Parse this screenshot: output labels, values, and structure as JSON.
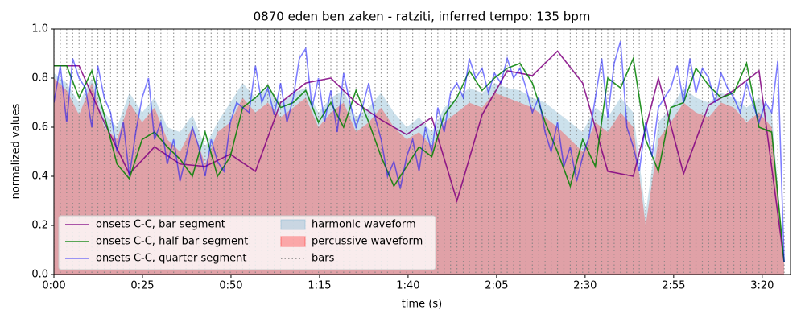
{
  "chart_data": {
    "type": "line",
    "title": "0870 eden ben zaken - ratziti, inferred tempo: 135 bpm",
    "x_label": "time (s)",
    "y_label": "normalized values",
    "xlim": [
      0,
      208
    ],
    "ylim": [
      0,
      1
    ],
    "xticks": [
      {
        "value": 0,
        "label": "0:00"
      },
      {
        "value": 25,
        "label": "0:25"
      },
      {
        "value": 50,
        "label": "0:50"
      },
      {
        "value": 75,
        "label": "1:15"
      },
      {
        "value": 100,
        "label": "1:40"
      },
      {
        "value": 125,
        "label": "2:05"
      },
      {
        "value": 150,
        "label": "2:30"
      },
      {
        "value": 175,
        "label": "2:55"
      },
      {
        "value": 200,
        "label": "3:20"
      }
    ],
    "yticks": [
      {
        "value": 0,
        "label": "0.0"
      },
      {
        "value": 0.2,
        "label": "0.2"
      },
      {
        "value": 0.4,
        "label": "0.4"
      },
      {
        "value": 0.6,
        "label": "0.6"
      },
      {
        "value": 0.8,
        "label": "0.8"
      },
      {
        "value": 1,
        "label": "1.0"
      }
    ],
    "legend": "lower left",
    "x": [
      0,
      3.6,
      7.1,
      10.7,
      14.2,
      17.8,
      21.3,
      24.9,
      28.4,
      32.0,
      35.6,
      39.1,
      42.7,
      46.2,
      49.8,
      53.3,
      56.9,
      60.4,
      64.0,
      67.6,
      71.1,
      74.7,
      78.2,
      81.8,
      85.3,
      88.9,
      92.4,
      96.0,
      99.6,
      103.1,
      106.7,
      110.2,
      113.8,
      117.3,
      120.9,
      124.4,
      128.0,
      131.6,
      135.1,
      138.7,
      142.2,
      145.8,
      149.3,
      152.9,
      156.4,
      160.0,
      163.6,
      167.1,
      170.7,
      174.2,
      177.8,
      181.3,
      184.9,
      188.4,
      192.0,
      195.6,
      199.1,
      202.7,
      206.2
    ],
    "series": [
      {
        "name": "onsets C-C, bar segment",
        "color": "#800080",
        "kind": "line",
        "opacity": 0.85,
        "x": [
          0,
          7.1,
          14.2,
          21.3,
          28.4,
          35.6,
          42.7,
          49.8,
          56.9,
          64.0,
          71.1,
          78.2,
          85.3,
          92.4,
          99.6,
          106.7,
          113.8,
          120.9,
          128.0,
          135.1,
          142.2,
          149.3,
          156.4,
          163.6,
          170.7,
          177.8,
          184.9,
          192.0,
          199.1,
          206.2
        ],
        "values": [
          0.85,
          0.85,
          0.62,
          0.41,
          0.52,
          0.45,
          0.44,
          0.49,
          0.42,
          0.7,
          0.78,
          0.8,
          0.7,
          0.63,
          0.57,
          0.64,
          0.3,
          0.65,
          0.83,
          0.81,
          0.91,
          0.78,
          0.42,
          0.4,
          0.8,
          0.41,
          0.69,
          0.75,
          0.83,
          0.05
        ]
      },
      {
        "name": "onsets C-C, half bar segment",
        "color": "#008000",
        "kind": "line",
        "opacity": 0.85,
        "values": [
          0.85,
          0.85,
          0.72,
          0.83,
          0.65,
          0.45,
          0.39,
          0.55,
          0.58,
          0.52,
          0.47,
          0.4,
          0.58,
          0.4,
          0.48,
          0.68,
          0.72,
          0.77,
          0.68,
          0.7,
          0.75,
          0.62,
          0.7,
          0.6,
          0.75,
          0.62,
          0.48,
          0.36,
          0.44,
          0.52,
          0.48,
          0.65,
          0.72,
          0.83,
          0.75,
          0.8,
          0.84,
          0.86,
          0.78,
          0.62,
          0.5,
          0.36,
          0.55,
          0.44,
          0.8,
          0.76,
          0.88,
          0.55,
          0.42,
          0.68,
          0.7,
          0.84,
          0.77,
          0.72,
          0.74,
          0.86,
          0.6,
          0.58,
          0.05
        ]
      },
      {
        "name": "onsets C-C, quarter segment",
        "color": "#0000ff",
        "kind": "line",
        "opacity": 0.5,
        "x": [
          0.0,
          1.8,
          3.6,
          5.3,
          7.1,
          8.9,
          10.7,
          12.4,
          14.2,
          16.0,
          17.8,
          19.6,
          21.3,
          23.1,
          24.9,
          26.7,
          28.4,
          30.2,
          32.0,
          33.8,
          35.6,
          37.3,
          39.1,
          40.9,
          42.7,
          44.4,
          46.2,
          48.0,
          49.8,
          51.6,
          53.3,
          55.1,
          56.9,
          58.7,
          60.4,
          62.2,
          64.0,
          65.8,
          67.6,
          69.3,
          71.1,
          72.9,
          74.7,
          76.4,
          78.2,
          80.0,
          81.8,
          83.6,
          85.3,
          87.1,
          88.9,
          90.7,
          92.4,
          94.2,
          96.0,
          97.8,
          99.6,
          101.3,
          103.1,
          104.9,
          106.7,
          108.4,
          110.2,
          112.0,
          113.8,
          115.6,
          117.3,
          119.1,
          120.9,
          122.7,
          124.4,
          126.2,
          128.0,
          129.8,
          131.6,
          133.3,
          135.1,
          136.9,
          138.7,
          140.4,
          142.2,
          144.0,
          145.8,
          147.6,
          149.3,
          151.1,
          152.9,
          154.7,
          156.4,
          158.2,
          160.0,
          161.8,
          163.6,
          165.3,
          167.1,
          168.9,
          170.7,
          172.4,
          174.2,
          176.0,
          177.8,
          179.6,
          181.3,
          183.1,
          184.9,
          186.7,
          188.4,
          190.2,
          192.0,
          193.8,
          195.6,
          197.3,
          199.1,
          200.9,
          202.7,
          204.4,
          206.2
        ],
        "values": [
          0.7,
          0.85,
          0.62,
          0.88,
          0.8,
          0.76,
          0.6,
          0.85,
          0.72,
          0.66,
          0.5,
          0.62,
          0.4,
          0.58,
          0.72,
          0.8,
          0.55,
          0.62,
          0.45,
          0.55,
          0.38,
          0.48,
          0.6,
          0.52,
          0.4,
          0.55,
          0.46,
          0.42,
          0.62,
          0.7,
          0.68,
          0.66,
          0.85,
          0.7,
          0.76,
          0.65,
          0.78,
          0.62,
          0.72,
          0.88,
          0.92,
          0.68,
          0.8,
          0.62,
          0.75,
          0.58,
          0.82,
          0.7,
          0.6,
          0.68,
          0.78,
          0.64,
          0.55,
          0.4,
          0.46,
          0.35,
          0.48,
          0.55,
          0.42,
          0.6,
          0.5,
          0.68,
          0.58,
          0.74,
          0.78,
          0.72,
          0.88,
          0.8,
          0.84,
          0.74,
          0.82,
          0.78,
          0.88,
          0.8,
          0.84,
          0.76,
          0.66,
          0.72,
          0.58,
          0.5,
          0.62,
          0.44,
          0.52,
          0.38,
          0.48,
          0.56,
          0.72,
          0.88,
          0.64,
          0.86,
          0.95,
          0.6,
          0.52,
          0.42,
          0.62,
          0.48,
          0.68,
          0.72,
          0.76,
          0.85,
          0.7,
          0.88,
          0.74,
          0.84,
          0.8,
          0.7,
          0.82,
          0.76,
          0.72,
          0.66,
          0.78,
          0.7,
          0.62,
          0.7,
          0.66,
          0.87,
          0.05
        ]
      },
      {
        "name": "harmonic waveform",
        "color": "#8fbcd4",
        "kind": "area",
        "opacity": 0.45,
        "values": [
          0.82,
          0.78,
          0.7,
          0.8,
          0.66,
          0.6,
          0.74,
          0.66,
          0.72,
          0.6,
          0.58,
          0.65,
          0.52,
          0.62,
          0.7,
          0.78,
          0.72,
          0.76,
          0.7,
          0.74,
          0.76,
          0.66,
          0.72,
          0.75,
          0.64,
          0.68,
          0.74,
          0.66,
          0.6,
          0.64,
          0.58,
          0.68,
          0.72,
          0.76,
          0.74,
          0.78,
          0.76,
          0.75,
          0.72,
          0.7,
          0.66,
          0.62,
          0.58,
          0.68,
          0.64,
          0.72,
          0.66,
          0.25,
          0.62,
          0.68,
          0.76,
          0.72,
          0.7,
          0.74,
          0.72,
          0.68,
          0.72,
          0.66,
          0.05
        ]
      },
      {
        "name": "percussive waveform",
        "color": "#ff4040",
        "kind": "area",
        "opacity": 0.4,
        "values": [
          0.8,
          0.75,
          0.65,
          0.78,
          0.6,
          0.55,
          0.7,
          0.62,
          0.68,
          0.55,
          0.5,
          0.6,
          0.45,
          0.58,
          0.62,
          0.72,
          0.66,
          0.7,
          0.64,
          0.68,
          0.72,
          0.6,
          0.66,
          0.7,
          0.58,
          0.62,
          0.68,
          0.6,
          0.55,
          0.58,
          0.52,
          0.62,
          0.66,
          0.7,
          0.68,
          0.74,
          0.72,
          0.7,
          0.68,
          0.64,
          0.6,
          0.55,
          0.5,
          0.62,
          0.58,
          0.66,
          0.6,
          0.2,
          0.55,
          0.62,
          0.7,
          0.66,
          0.64,
          0.7,
          0.68,
          0.62,
          0.66,
          0.6,
          0.05
        ]
      }
    ],
    "bars": {
      "name": "bars",
      "color": "#808080",
      "x": [
        0.0,
        1.8,
        3.6,
        5.3,
        7.1,
        8.9,
        10.7,
        12.4,
        14.2,
        16.0,
        17.8,
        19.6,
        21.3,
        23.1,
        24.9,
        26.7,
        28.4,
        30.2,
        32.0,
        33.8,
        35.6,
        37.3,
        39.1,
        40.9,
        42.7,
        44.4,
        46.2,
        48.0,
        49.8,
        51.6,
        53.3,
        55.1,
        56.9,
        58.7,
        60.4,
        62.2,
        64.0,
        65.8,
        67.6,
        69.3,
        71.1,
        72.9,
        74.7,
        76.4,
        78.2,
        80.0,
        81.8,
        83.6,
        85.3,
        87.1,
        88.9,
        90.7,
        92.4,
        94.2,
        96.0,
        97.8,
        99.6,
        101.3,
        103.1,
        104.9,
        106.7,
        108.4,
        110.2,
        112.0,
        113.8,
        115.6,
        117.3,
        119.1,
        120.9,
        122.7,
        124.4,
        126.2,
        128.0,
        129.8,
        131.6,
        133.3,
        135.1,
        136.9,
        138.7,
        140.4,
        142.2,
        144.0,
        145.8,
        147.6,
        149.3,
        151.1,
        152.9,
        154.7,
        156.4,
        158.2,
        160.0,
        161.8,
        163.6,
        165.3,
        167.1,
        168.9,
        170.7,
        172.4,
        174.2,
        176.0,
        177.8,
        179.6,
        181.3,
        183.1,
        184.9,
        186.7,
        188.4,
        190.2,
        192.0,
        193.8,
        195.6,
        197.3,
        199.1,
        200.9,
        202.7,
        204.4,
        206.2
      ]
    }
  }
}
